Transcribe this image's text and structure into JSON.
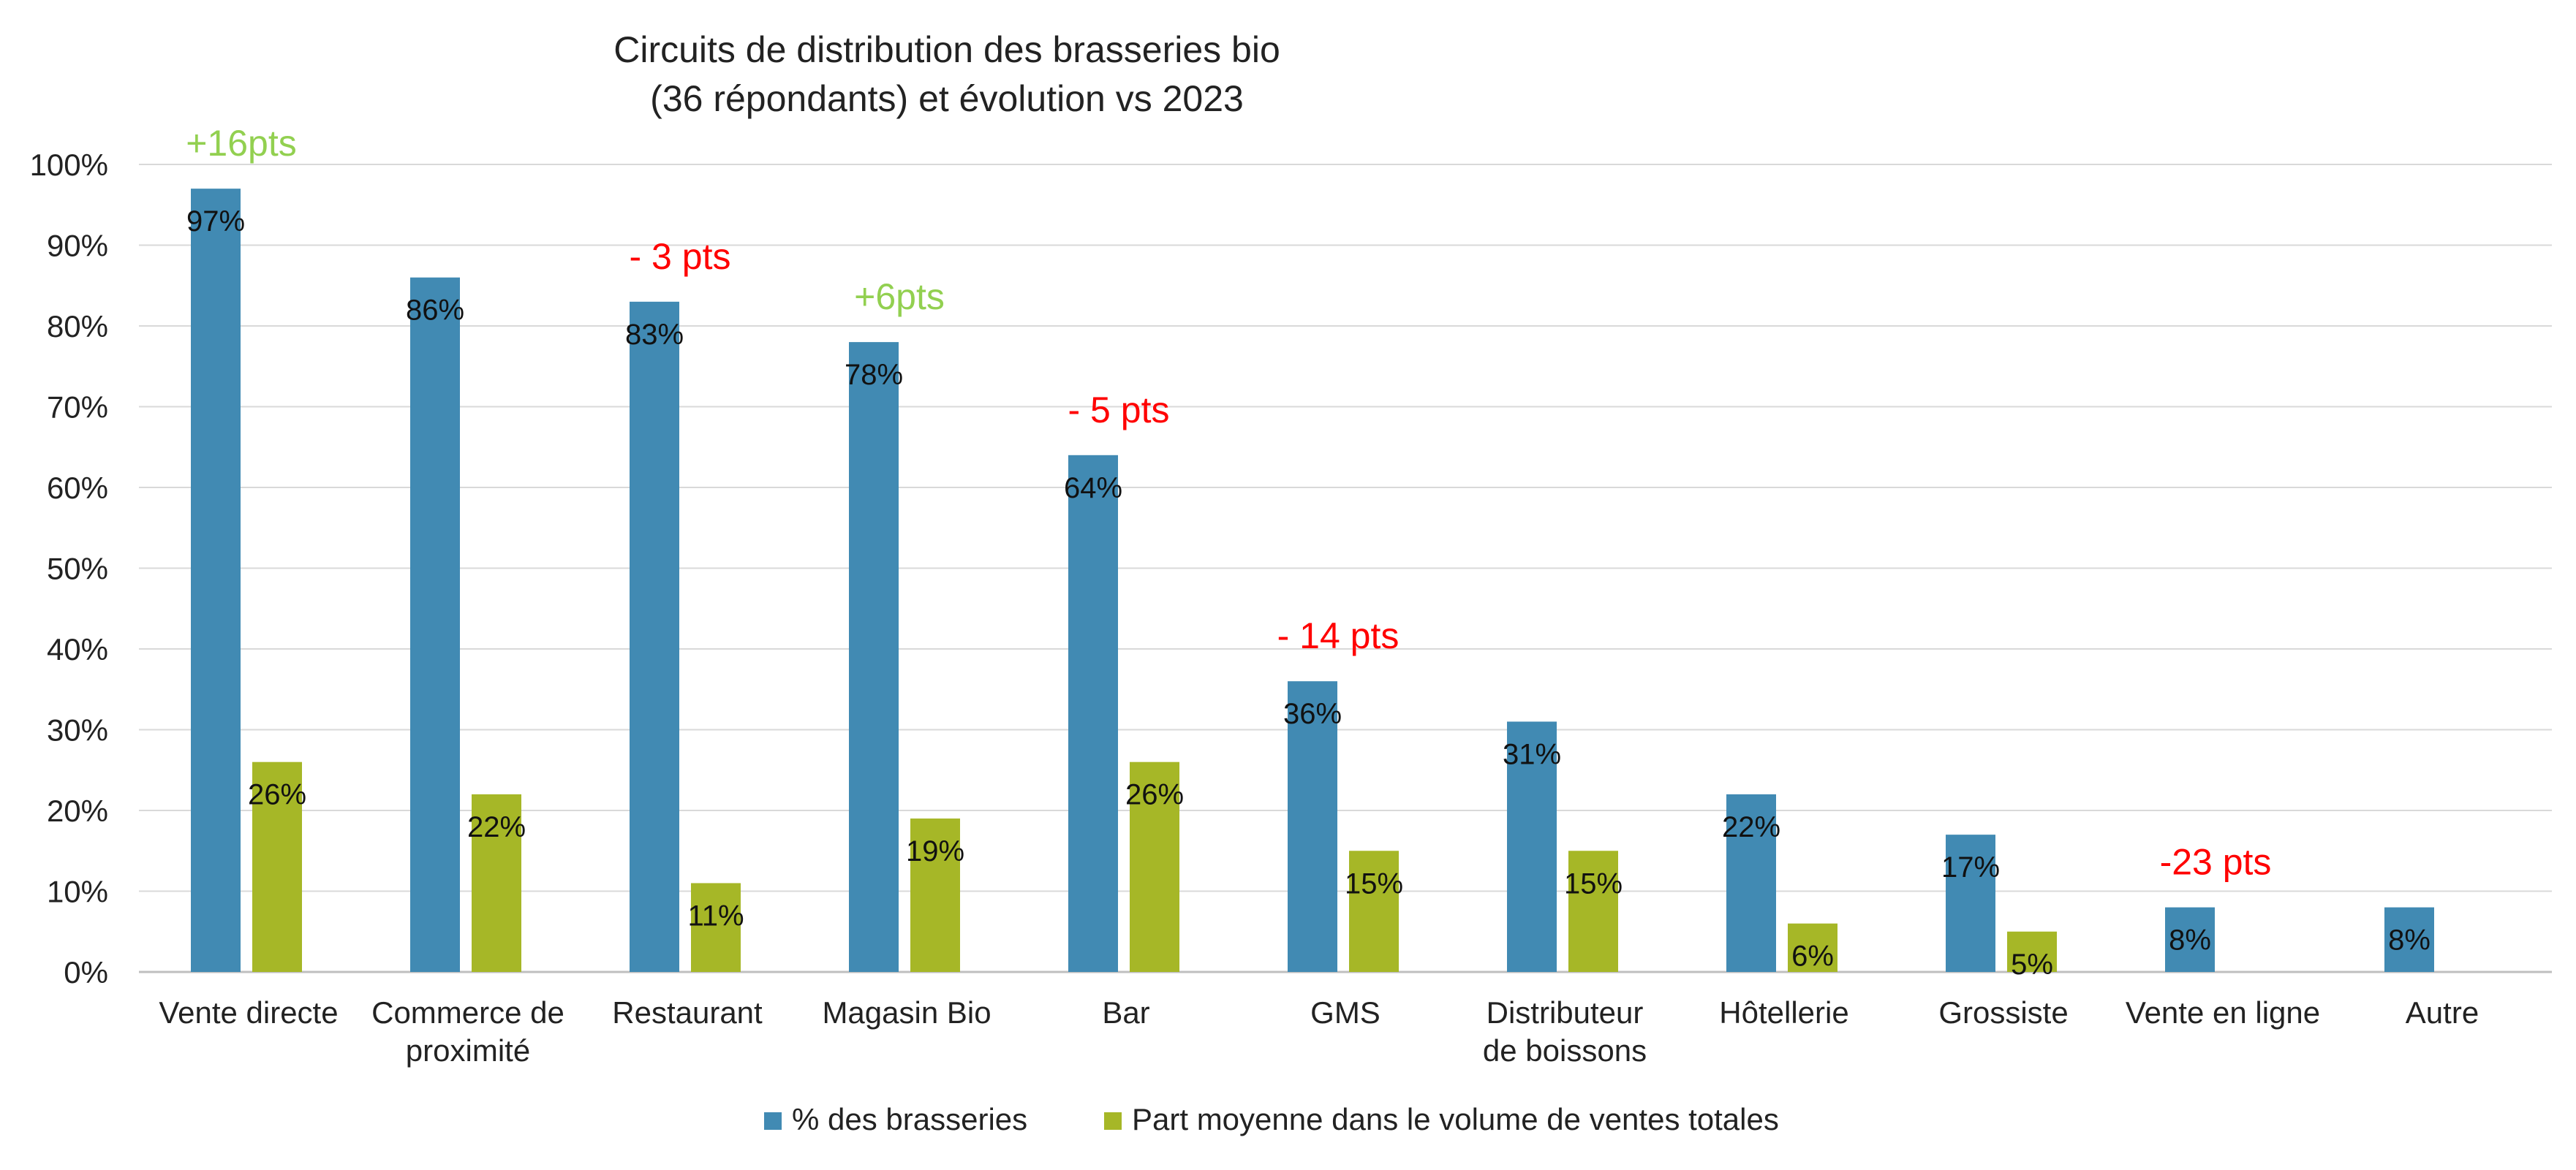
{
  "chart_data": {
    "type": "bar",
    "title_lines": [
      "Circuits de distribution des brasseries bio",
      "(36 répondants) et évolution vs 2023"
    ],
    "categories": [
      [
        "Vente directe"
      ],
      [
        "Commerce de",
        "proximité"
      ],
      [
        "Restaurant"
      ],
      [
        "Magasin Bio"
      ],
      [
        "Bar"
      ],
      [
        "GMS"
      ],
      [
        "Distributeur",
        "de boissons"
      ],
      [
        "Hôtellerie"
      ],
      [
        "Grossiste"
      ],
      [
        "Vente en ligne"
      ],
      [
        "Autre"
      ]
    ],
    "series": [
      {
        "name": "% des brasseries",
        "color": "#418AB3",
        "values": [
          97,
          86,
          83,
          78,
          64,
          36,
          31,
          22,
          17,
          8,
          8
        ],
        "labels": [
          "97%",
          "86%",
          "83%",
          "78%",
          "64%",
          "36%",
          "31%",
          "22%",
          "17%",
          "8%",
          "8%"
        ]
      },
      {
        "name": "Part moyenne dans le volume de ventes totales",
        "color": "#A6B727",
        "values": [
          26,
          22,
          11,
          19,
          26,
          15,
          15,
          6,
          5,
          null,
          null
        ],
        "labels": [
          "26%",
          "22%",
          "11%",
          "19%",
          "26%",
          "15%",
          "15%",
          "6%",
          "5%",
          "",
          ""
        ]
      }
    ],
    "y_ticks": [
      "0%",
      "10%",
      "20%",
      "30%",
      "40%",
      "50%",
      "60%",
      "70%",
      "80%",
      "90%",
      "100%"
    ],
    "ylim": [
      0,
      100
    ],
    "grid": true,
    "legend_position": "bottom",
    "annotations": [
      {
        "category_index": 0,
        "text": "+16pts",
        "color": "#92D050"
      },
      {
        "category_index": 2,
        "text": "- 3 pts",
        "color": "#FF0000"
      },
      {
        "category_index": 3,
        "text": "+6pts",
        "color": "#92D050"
      },
      {
        "category_index": 4,
        "text": "- 5 pts",
        "color": "#FF0000"
      },
      {
        "category_index": 5,
        "text": "- 14 pts",
        "color": "#FF0000"
      },
      {
        "category_index": 9,
        "text": "-23 pts",
        "color": "#FF0000"
      }
    ]
  }
}
